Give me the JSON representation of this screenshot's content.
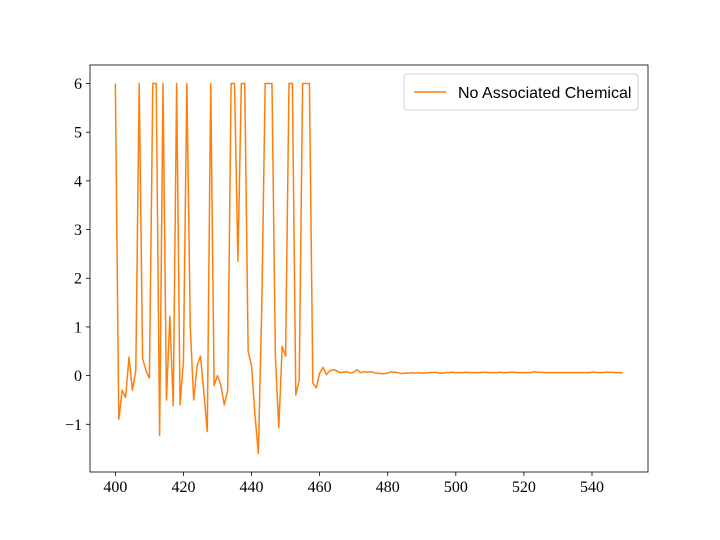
{
  "chart_data": {
    "type": "line",
    "x": [
      400,
      401,
      402,
      403,
      404,
      405,
      406,
      407,
      408,
      409,
      410,
      411,
      412,
      413,
      414,
      415,
      416,
      417,
      418,
      419,
      420,
      421,
      422,
      423,
      424,
      425,
      426,
      427,
      428,
      429,
      430,
      431,
      432,
      433,
      434,
      435,
      436,
      437,
      438,
      439,
      440,
      441,
      442,
      443,
      444,
      445,
      446,
      447,
      448,
      449,
      450,
      451,
      452,
      453,
      454,
      455,
      456,
      457,
      458,
      459,
      460,
      461,
      462,
      463,
      464,
      465,
      466,
      467,
      468,
      469,
      470,
      471,
      472,
      473,
      474,
      475,
      476,
      477,
      478,
      479,
      480,
      481,
      482,
      483,
      484,
      485,
      486,
      487,
      488,
      489,
      490,
      491,
      492,
      493,
      494,
      495,
      496,
      497,
      498,
      499,
      500,
      501,
      502,
      503,
      504,
      505,
      506,
      507,
      508,
      509,
      510,
      511,
      512,
      513,
      514,
      515,
      516,
      517,
      518,
      519,
      520,
      521,
      522,
      523,
      524,
      525,
      526,
      527,
      528,
      529,
      530,
      531,
      532,
      533,
      534,
      535,
      536,
      537,
      538,
      539,
      540,
      541,
      542,
      543,
      544,
      545,
      546,
      547,
      548,
      549
    ],
    "series": [
      {
        "name": "No Associated Chemical",
        "color": "#ff7f0e",
        "values": [
          6,
          -0.9,
          -0.3,
          -0.45,
          0.38,
          -0.3,
          0.1,
          6,
          0.35,
          0.1,
          -0.05,
          6,
          6,
          -1.23,
          6,
          -0.5,
          1.22,
          -0.62,
          6,
          -0.6,
          0.3,
          6,
          1.0,
          -0.5,
          0.2,
          0.4,
          -0.35,
          -1.15,
          6,
          -0.2,
          0.0,
          -0.2,
          -0.6,
          -0.3,
          6,
          6,
          2.35,
          6,
          6,
          0.5,
          0.2,
          -0.8,
          -1.6,
          1.4,
          6,
          6,
          6,
          0.4,
          -1.07,
          0.6,
          0.4,
          6,
          6,
          -0.4,
          -0.1,
          6,
          6,
          6,
          -0.15,
          -0.25,
          0.05,
          0.17,
          0.02,
          0.1,
          0.12,
          0.1,
          0.06,
          0.07,
          0.08,
          0.05,
          0.07,
          0.12,
          0.06,
          0.08,
          0.07,
          0.08,
          0.06,
          0.05,
          0.04,
          0.04,
          0.05,
          0.08,
          0.07,
          0.06,
          0.04,
          0.05,
          0.05,
          0.06,
          0.05,
          0.06,
          0.05,
          0.05,
          0.06,
          0.06,
          0.07,
          0.05,
          0.05,
          0.06,
          0.06,
          0.07,
          0.06,
          0.06,
          0.06,
          0.07,
          0.06,
          0.06,
          0.06,
          0.06,
          0.07,
          0.07,
          0.06,
          0.06,
          0.06,
          0.07,
          0.06,
          0.06,
          0.07,
          0.07,
          0.06,
          0.06,
          0.06,
          0.06,
          0.06,
          0.08,
          0.07,
          0.07,
          0.06,
          0.06,
          0.06,
          0.06,
          0.06,
          0.06,
          0.06,
          0.06,
          0.06,
          0.06,
          0.06,
          0.06,
          0.06,
          0.06,
          0.07,
          0.07,
          0.06,
          0.06,
          0.07,
          0.07,
          0.07,
          0.06,
          0.06,
          0.06
        ]
      }
    ],
    "xlim": [
      392.55,
      556.45
    ],
    "ylim": [
      -1.98,
      6.38
    ],
    "xticks": [
      400,
      420,
      440,
      460,
      480,
      500,
      520,
      540
    ],
    "yticks": [
      {
        "value": -1,
        "label": "−1"
      },
      0,
      1,
      2,
      3,
      4,
      5,
      6
    ],
    "legend": "upper right",
    "grid": false
  }
}
